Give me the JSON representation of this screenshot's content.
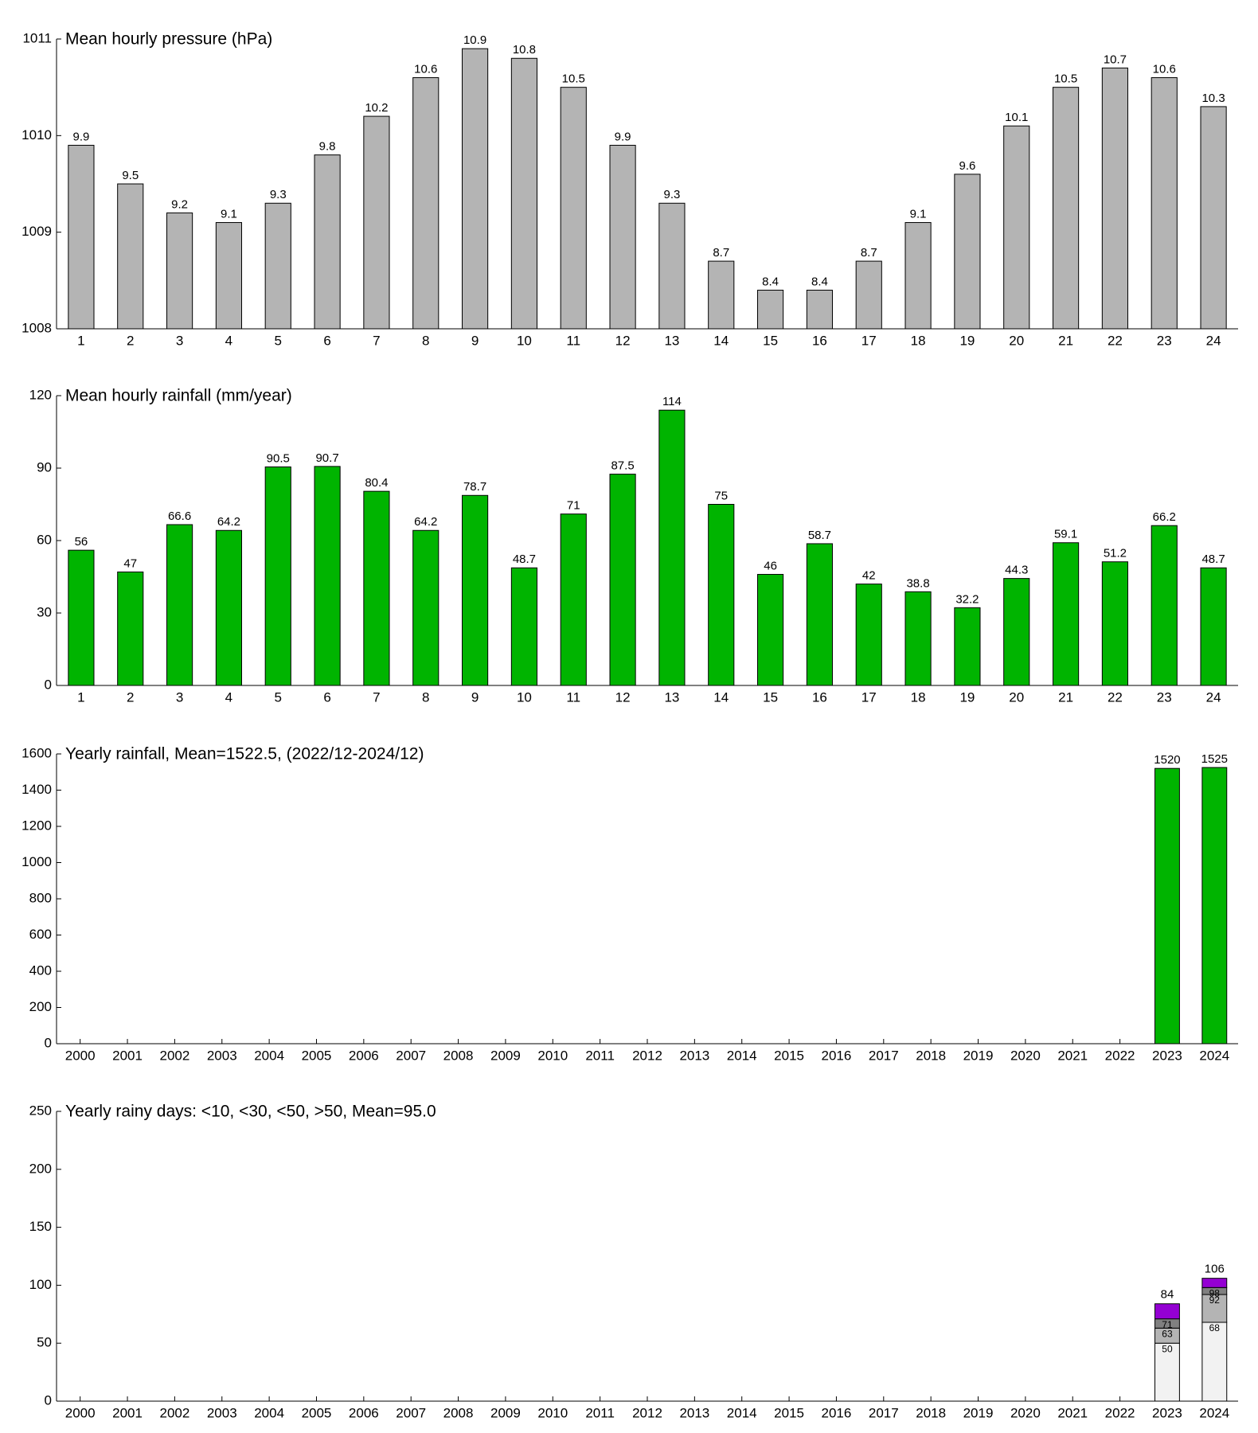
{
  "chart_data": [
    {
      "type": "bar",
      "title": "Mean hourly pressure (hPa)",
      "categories": [
        "1",
        "2",
        "3",
        "4",
        "5",
        "6",
        "7",
        "8",
        "9",
        "10",
        "11",
        "12",
        "13",
        "14",
        "15",
        "16",
        "17",
        "18",
        "19",
        "20",
        "21",
        "22",
        "23",
        "24"
      ],
      "values": [
        1009.9,
        1009.5,
        1009.2,
        1009.1,
        1009.3,
        1009.8,
        1010.2,
        1010.6,
        1010.9,
        1010.8,
        1010.5,
        1009.9,
        1009.3,
        1008.7,
        1008.4,
        1008.4,
        1008.7,
        1009.1,
        1009.6,
        1010.1,
        1010.5,
        1010.7,
        1010.6,
        1010.3
      ],
      "value_labels": [
        "9.9",
        "9.5",
        "9.2",
        "9.1",
        "9.3",
        "9.8",
        "10.2",
        "10.6",
        "10.9",
        "10.8",
        "10.5",
        "9.9",
        "9.3",
        "8.7",
        "8.4",
        "8.4",
        "8.7",
        "9.1",
        "9.6",
        "10.1",
        "10.5",
        "10.7",
        "10.6",
        "10.3"
      ],
      "color": "#b4b4b4",
      "ylim": [
        1008,
        1011
      ],
      "yticks": [
        1008,
        1009,
        1010,
        1011
      ]
    },
    {
      "type": "bar",
      "title": "Mean hourly rainfall (mm/year)",
      "categories": [
        "1",
        "2",
        "3",
        "4",
        "5",
        "6",
        "7",
        "8",
        "9",
        "10",
        "11",
        "12",
        "13",
        "14",
        "15",
        "16",
        "17",
        "18",
        "19",
        "20",
        "21",
        "22",
        "23",
        "24"
      ],
      "values": [
        56,
        47,
        66.6,
        64.2,
        90.5,
        90.7,
        80.4,
        64.2,
        78.7,
        48.7,
        71,
        87.5,
        114,
        75,
        46,
        58.7,
        42,
        38.8,
        32.2,
        44.3,
        59.1,
        51.2,
        66.2,
        48.7
      ],
      "color": "#00b400",
      "ylim": [
        0,
        120
      ],
      "yticks": [
        0,
        30,
        60,
        90,
        120
      ]
    },
    {
      "type": "bar",
      "title": "Yearly rainfall, Mean=1522.5, (2022/12-2024/12)",
      "categories": [
        "2000",
        "2001",
        "2002",
        "2003",
        "2004",
        "2005",
        "2006",
        "2007",
        "2008",
        "2009",
        "2010",
        "2011",
        "2012",
        "2013",
        "2014",
        "2015",
        "2016",
        "2017",
        "2018",
        "2019",
        "2020",
        "2021",
        "2022",
        "2023",
        "2024"
      ],
      "values": [
        null,
        null,
        null,
        null,
        null,
        null,
        null,
        null,
        null,
        null,
        null,
        null,
        null,
        null,
        null,
        null,
        null,
        null,
        null,
        null,
        null,
        null,
        null,
        1520,
        1525
      ],
      "color": "#00b400",
      "ylim": [
        0,
        1600
      ],
      "yticks": [
        0,
        200,
        400,
        600,
        800,
        1000,
        1200,
        1400,
        1600
      ]
    },
    {
      "type": "stacked_bar",
      "title": "Yearly rainy days: <10, <30, <50, >50, Mean=95.0",
      "categories": [
        "2000",
        "2001",
        "2002",
        "2003",
        "2004",
        "2005",
        "2006",
        "2007",
        "2008",
        "2009",
        "2010",
        "2011",
        "2012",
        "2013",
        "2014",
        "2015",
        "2016",
        "2017",
        "2018",
        "2019",
        "2020",
        "2021",
        "2022",
        "2023",
        "2024"
      ],
      "series": [
        {
          "color": "#f2f2f2",
          "values": [
            null,
            null,
            null,
            null,
            null,
            null,
            null,
            null,
            null,
            null,
            null,
            null,
            null,
            null,
            null,
            null,
            null,
            null,
            null,
            null,
            null,
            null,
            null,
            50,
            68
          ],
          "level_labels": [
            null,
            null,
            null,
            null,
            null,
            null,
            null,
            null,
            null,
            null,
            null,
            null,
            null,
            null,
            null,
            null,
            null,
            null,
            null,
            null,
            null,
            null,
            null,
            50,
            68
          ]
        },
        {
          "color": "#b4b4b4",
          "values": [
            null,
            null,
            null,
            null,
            null,
            null,
            null,
            null,
            null,
            null,
            null,
            null,
            null,
            null,
            null,
            null,
            null,
            null,
            null,
            null,
            null,
            null,
            null,
            13,
            24
          ],
          "level_labels": [
            null,
            null,
            null,
            null,
            null,
            null,
            null,
            null,
            null,
            null,
            null,
            null,
            null,
            null,
            null,
            null,
            null,
            null,
            null,
            null,
            null,
            null,
            null,
            63,
            92
          ]
        },
        {
          "color": "#808080",
          "values": [
            null,
            null,
            null,
            null,
            null,
            null,
            null,
            null,
            null,
            null,
            null,
            null,
            null,
            null,
            null,
            null,
            null,
            null,
            null,
            null,
            null,
            null,
            null,
            8,
            6
          ],
          "level_labels": [
            null,
            null,
            null,
            null,
            null,
            null,
            null,
            null,
            null,
            null,
            null,
            null,
            null,
            null,
            null,
            null,
            null,
            null,
            null,
            null,
            null,
            null,
            null,
            71,
            98
          ]
        },
        {
          "color": "#9400d3",
          "values": [
            null,
            null,
            null,
            null,
            null,
            null,
            null,
            null,
            null,
            null,
            null,
            null,
            null,
            null,
            null,
            null,
            null,
            null,
            null,
            null,
            null,
            null,
            null,
            13,
            8
          ],
          "level_labels": [
            null,
            null,
            null,
            null,
            null,
            null,
            null,
            null,
            null,
            null,
            null,
            null,
            null,
            null,
            null,
            null,
            null,
            null,
            null,
            null,
            null,
            null,
            null,
            84,
            106
          ]
        }
      ],
      "ylim": [
        0,
        250
      ],
      "yticks": [
        0,
        50,
        100,
        150,
        200,
        250
      ]
    }
  ]
}
